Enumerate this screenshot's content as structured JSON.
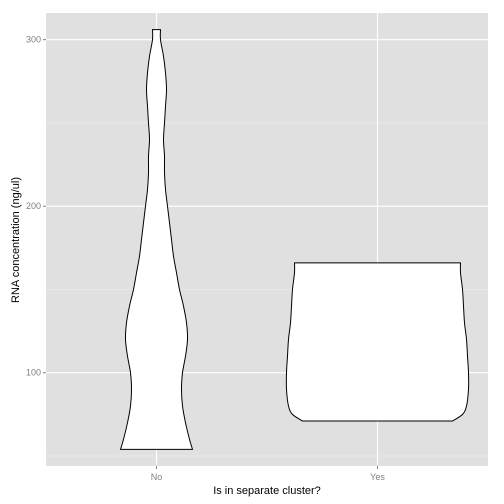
{
  "chart_data": {
    "type": "violin",
    "title": "",
    "xlabel": "Is in separate cluster?",
    "ylabel": "RNA concentration (ng/ul)",
    "categories": [
      "No",
      "Yes"
    ],
    "ylim": [
      44,
      316
    ],
    "yticks": [
      100,
      200,
      300
    ],
    "grid": true,
    "colors": {
      "panel": "#e0e0e0",
      "grid_major": "#ffffff",
      "grid_minor": "#eeeeee",
      "fill": "#ffffff",
      "outline": "#000000"
    },
    "violins": [
      {
        "category": "No",
        "min": 54,
        "max": 306,
        "profile": [
          [
            54,
            36
          ],
          [
            60,
            33
          ],
          [
            70,
            29
          ],
          [
            80,
            26
          ],
          [
            90,
            25
          ],
          [
            100,
            26
          ],
          [
            110,
            29
          ],
          [
            120,
            31
          ],
          [
            130,
            30
          ],
          [
            140,
            27
          ],
          [
            150,
            23
          ],
          [
            160,
            20
          ],
          [
            170,
            17
          ],
          [
            180,
            15
          ],
          [
            190,
            13
          ],
          [
            200,
            11
          ],
          [
            210,
            9
          ],
          [
            220,
            8
          ],
          [
            230,
            8
          ],
          [
            240,
            7
          ],
          [
            250,
            8
          ],
          [
            260,
            9
          ],
          [
            270,
            10
          ],
          [
            280,
            9
          ],
          [
            290,
            7
          ],
          [
            300,
            4
          ],
          [
            306,
            0
          ]
        ]
      },
      {
        "category": "Yes",
        "min": 71,
        "max": 166,
        "profile": [
          [
            71,
            75
          ],
          [
            75,
            85
          ],
          [
            80,
            89
          ],
          [
            90,
            91
          ],
          [
            100,
            91
          ],
          [
            110,
            90
          ],
          [
            120,
            89
          ],
          [
            130,
            87
          ],
          [
            140,
            86
          ],
          [
            150,
            85
          ],
          [
            160,
            83
          ],
          [
            166,
            0
          ]
        ]
      }
    ]
  }
}
